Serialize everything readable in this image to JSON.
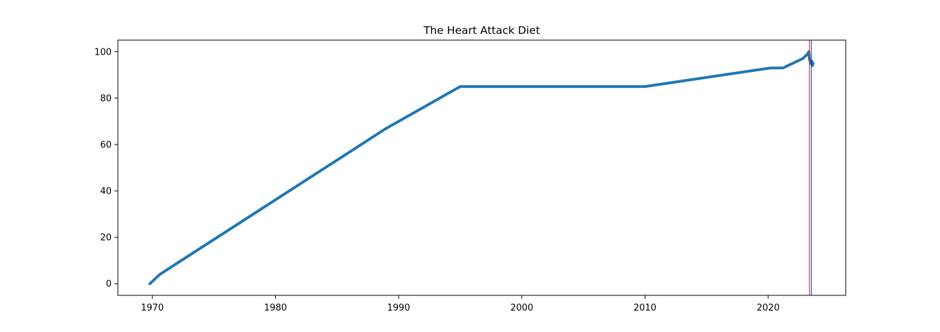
{
  "chart_data": {
    "type": "line",
    "title": "The Heart Attack Diet",
    "xlabel": "",
    "ylabel": "",
    "xlim": [
      1967.2,
      2026.3
    ],
    "ylim": [
      -5,
      105
    ],
    "x_ticks": [
      1970,
      1980,
      1990,
      2000,
      2010,
      2020
    ],
    "y_ticks": [
      0,
      20,
      40,
      60,
      80,
      100
    ],
    "series": [
      {
        "color": "#1f77b4",
        "x": [
          1969.8,
          1970.6,
          1989.0,
          1995.0,
          2010.0,
          2020.2,
          2021.2,
          2022.8,
          2023.0,
          2023.2,
          2023.3,
          2023.35,
          2023.45,
          2023.55,
          2023.6,
          2023.65
        ],
        "y": [
          0,
          4,
          67,
          85,
          85,
          93,
          93,
          97,
          98,
          99,
          100,
          97,
          95,
          96,
          94,
          95
        ]
      }
    ],
    "vlines": [
      {
        "x": 2023.35,
        "color": "#d62728"
      },
      {
        "x": 2023.5,
        "color": "#1f1fb4"
      }
    ],
    "grid": false,
    "legend": false
  }
}
